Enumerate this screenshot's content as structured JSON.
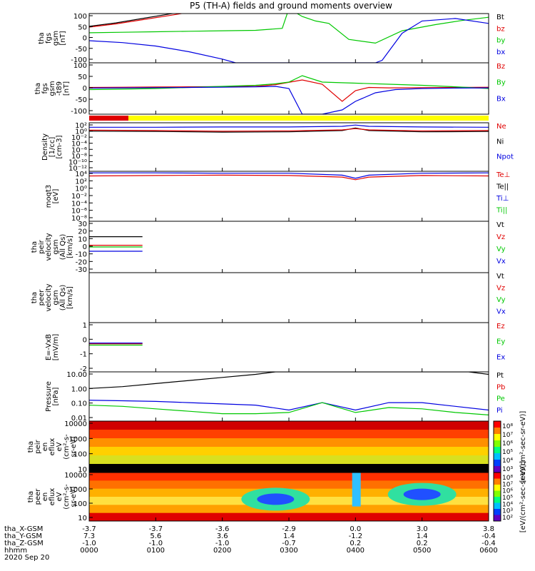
{
  "title": "P5 (TH-A) fields and ground moments overview",
  "colors": {
    "black": "#000000",
    "red": "#e00000",
    "green": "#00c800",
    "blue": "#0000e0",
    "yellow": "#ffff00"
  },
  "chart_data": [
    {
      "type": "line",
      "ylabel_lines": [
        "tha",
        "fgs",
        "gsm",
        "[nT]"
      ],
      "yticks": [
        "100",
        "50",
        "0",
        "-50",
        "-100"
      ],
      "ylim": [
        -100,
        100
      ],
      "legend": [
        {
          "label": "Bt",
          "color": "#000000"
        },
        {
          "label": "bz",
          "color": "#e00000"
        },
        {
          "label": "by",
          "color": "#00c800"
        },
        {
          "label": "bx",
          "color": "#0000e0"
        }
      ],
      "series": [
        {
          "name": "Bt",
          "x": [
            0,
            0.4,
            0.8,
            1.2,
            1.5,
            2.0
          ],
          "y": [
            48,
            62,
            80,
            98,
            110,
            140
          ]
        },
        {
          "name": "bz",
          "x": [
            0,
            0.4,
            0.8,
            1.2,
            1.5,
            2.0
          ],
          "y": [
            45,
            58,
            75,
            92,
            105,
            130
          ]
        },
        {
          "name": "by",
          "x": [
            0,
            0.5,
            1.0,
            1.5,
            2.0,
            2.5,
            2.9,
            3.0,
            3.2,
            3.4,
            3.6,
            3.9,
            4.3,
            4.7,
            5.2,
            5.6,
            6.0
          ],
          "y": [
            22,
            24,
            26,
            28,
            30,
            32,
            40,
            120,
            88,
            70,
            60,
            -5,
            -20,
            30,
            55,
            72,
            85
          ]
        },
        {
          "name": "bx",
          "x": [
            0,
            0.5,
            1.0,
            1.5,
            2.0,
            2.2,
            2.8,
            3.2,
            3.6,
            4.2,
            4.3,
            4.4,
            4.7,
            5.0,
            5.5,
            6.0
          ],
          "y": [
            -10,
            -18,
            -32,
            -55,
            -85,
            -100,
            -100,
            -100,
            -100,
            -100,
            -100,
            -90,
            20,
            70,
            80,
            60
          ]
        }
      ]
    },
    {
      "type": "line",
      "ylabel_lines": [
        "tha",
        "fgs",
        "gsm",
        "-t89",
        "[nT]"
      ],
      "yticks": [
        "100",
        "50",
        "0",
        "-50",
        "-100"
      ],
      "ylim": [
        -120,
        120
      ],
      "legend": [
        {
          "label": "Bz",
          "color": "#e00000"
        },
        {
          "label": "By",
          "color": "#00c800"
        },
        {
          "label": "Bx",
          "color": "#0000e0"
        }
      ],
      "series": [
        {
          "name": "Bz",
          "x": [
            0,
            0.5,
            1.0,
            1.5,
            2.0,
            2.5,
            2.8,
            3.2,
            3.5,
            3.8,
            4.0,
            4.2,
            4.5,
            5.0,
            5.5,
            6.0
          ],
          "y": [
            5,
            6,
            7,
            8,
            9,
            10,
            18,
            40,
            20,
            -60,
            -10,
            5,
            3,
            4,
            5,
            6
          ]
        },
        {
          "name": "By",
          "x": [
            0,
            0.5,
            1.0,
            1.5,
            2.0,
            2.5,
            2.8,
            3.0,
            3.2,
            3.5,
            4.0,
            4.5,
            5.0,
            5.5,
            6.0
          ],
          "y": [
            -5,
            -3,
            0,
            5,
            10,
            15,
            22,
            30,
            60,
            30,
            25,
            20,
            15,
            8,
            0
          ]
        },
        {
          "name": "Bx",
          "x": [
            0,
            0.5,
            1.0,
            1.5,
            2.0,
            2.5,
            2.8,
            3.0,
            3.2,
            3.5,
            3.8,
            4.0,
            4.3,
            4.6,
            5.0,
            5.5,
            6.0
          ],
          "y": [
            2,
            3,
            4,
            5,
            6,
            8,
            10,
            0,
            -120,
            -120,
            -100,
            -60,
            -20,
            -5,
            0,
            2,
            3
          ]
        }
      ]
    },
    {
      "type": "line",
      "ylabel_lines": [
        "Density",
        "[1/cc]",
        "[cm-3]"
      ],
      "yticks": [
        "10^2",
        "10^0",
        "10^-2",
        "10^-4",
        "10^-6",
        "10^-8",
        "10^-10",
        "10^-12"
      ],
      "ylim_log10": [
        -13,
        2
      ],
      "legend": [
        {
          "label": "Ne",
          "color": "#e00000"
        },
        {
          "label": "Ni",
          "color": "#000000"
        },
        {
          "label": "Npot",
          "color": "#0000e0"
        }
      ],
      "series": [
        {
          "name": "Npot",
          "x": [
            0,
            1,
            2,
            3,
            3.8,
            4.0,
            4.2,
            5,
            6
          ],
          "y": [
            0.6,
            0.6,
            0.7,
            0.7,
            0.9,
            1.3,
            0.9,
            0.7,
            0.6
          ]
        },
        {
          "name": "Ni",
          "x": [
            0,
            1,
            2,
            3,
            3.8,
            4.0,
            4.2,
            5,
            6
          ],
          "y": [
            -0.6,
            -0.7,
            -0.9,
            -0.8,
            -0.4,
            0.4,
            -0.4,
            -0.8,
            -0.7
          ]
        },
        {
          "name": "Ne",
          "x": [
            0,
            1,
            2,
            3,
            3.8,
            4.0,
            4.2,
            5,
            6
          ],
          "y": [
            -0.3,
            -0.4,
            -0.6,
            -0.5,
            -0.2,
            0.2,
            -0.2,
            -0.5,
            -0.4
          ]
        }
      ]
    },
    {
      "type": "line",
      "ylabel_lines": [
        "moqt3",
        "[eV]"
      ],
      "yticks": [
        "10^4",
        "10^2",
        "10^0",
        "10^-2",
        "10^-4",
        "10^-6",
        "10^-8"
      ],
      "ylim_log10": [
        -9,
        4
      ],
      "legend": [
        {
          "label": "Te⊥",
          "color": "#e00000"
        },
        {
          "label": "Te||",
          "color": "#000000"
        },
        {
          "label": "Ti⊥",
          "color": "#0000e0"
        },
        {
          "label": "Ti||",
          "color": "#00c800"
        }
      ],
      "series": [
        {
          "name": "Ti⊥",
          "x": [
            0,
            1,
            2,
            3,
            3.8,
            4.0,
            4.2,
            5,
            6
          ],
          "y": [
            3.6,
            3.6,
            3.5,
            3.5,
            3.0,
            2.2,
            3.0,
            3.5,
            3.6
          ]
        },
        {
          "name": "Te⊥",
          "x": [
            0,
            1,
            2,
            3,
            3.8,
            4.0,
            4.2,
            5,
            6
          ],
          "y": [
            2.8,
            2.9,
            3.0,
            2.9,
            2.5,
            1.8,
            2.5,
            2.9,
            2.8
          ]
        }
      ]
    },
    {
      "type": "line",
      "ylabel_lines": [
        "tha",
        "peir",
        "velocity",
        "gsm",
        "(All Qs)",
        "[km/s]"
      ],
      "yticks": [
        "30",
        "20",
        "10",
        "0",
        "-10",
        "-20",
        "-30"
      ],
      "ylim": [
        -30,
        30
      ],
      "legend": [
        {
          "label": "Vt",
          "color": "#000000"
        },
        {
          "label": "Vz",
          "color": "#e00000"
        },
        {
          "label": "Vy",
          "color": "#00c800"
        },
        {
          "label": "Vx",
          "color": "#0000e0"
        }
      ],
      "series": [
        {
          "name": "Vt",
          "x": [
            0,
            0.8
          ],
          "y": [
            12,
            12
          ]
        },
        {
          "name": "Vz",
          "x": [
            0,
            0.8
          ],
          "y": [
            2,
            2
          ]
        },
        {
          "name": "Vy",
          "x": [
            0,
            0.8
          ],
          "y": [
            0,
            0
          ]
        },
        {
          "name": "Vx",
          "x": [
            0,
            0.8
          ],
          "y": [
            -5,
            -5
          ]
        }
      ]
    },
    {
      "type": "line",
      "ylabel_lines": [
        "tha",
        "peer",
        "velocity",
        "gsm",
        "(All Qs)",
        "[km/s]"
      ],
      "yticks": [],
      "legend": [
        {
          "label": "Vt",
          "color": "#000000"
        },
        {
          "label": "Vz",
          "color": "#e00000"
        },
        {
          "label": "Vy",
          "color": "#00c800"
        },
        {
          "label": "Vx",
          "color": "#0000e0"
        }
      ],
      "series": []
    },
    {
      "type": "line",
      "ylabel_lines": [
        "E=-VxB",
        "[mV/m]"
      ],
      "yticks": [
        "1",
        "0",
        "-1",
        "-2"
      ],
      "ylim": [
        -2,
        1.5
      ],
      "legend": [
        {
          "label": "Ez",
          "color": "#e00000"
        },
        {
          "label": "Ey",
          "color": "#00c800"
        },
        {
          "label": "Ex",
          "color": "#0000e0"
        }
      ],
      "series": [
        {
          "name": "Ez",
          "x": [
            0,
            0.8
          ],
          "y": [
            0,
            0
          ]
        },
        {
          "name": "Ey",
          "x": [
            0,
            0.8
          ],
          "y": [
            -0.1,
            -0.1
          ]
        },
        {
          "name": "Ex",
          "x": [
            0,
            0.8
          ],
          "y": [
            0.05,
            0.05
          ]
        }
      ]
    },
    {
      "type": "line",
      "ylabel_lines": [
        "Pressure",
        "[nPa]"
      ],
      "yticks": [
        "10.00",
        "1.00",
        "0.10",
        "0.01"
      ],
      "ylim_log10": [
        -2.5,
        1.5
      ],
      "legend": [
        {
          "label": "Pt",
          "color": "#000000"
        },
        {
          "label": "Pb",
          "color": "#e00000"
        },
        {
          "label": "Pe",
          "color": "#00c800"
        },
        {
          "label": "Pi",
          "color": "#0000e0"
        }
      ],
      "series": [
        {
          "name": "Pt",
          "x": [
            0,
            0.5,
            1.0,
            1.5,
            2.0,
            2.5,
            2.8,
            5.7,
            6.0
          ],
          "y": [
            0.15,
            0.3,
            0.55,
            0.8,
            1.05,
            1.3,
            1.5,
            1.5,
            1.3
          ]
        },
        {
          "name": "Pi",
          "x": [
            0,
            0.5,
            1.0,
            1.5,
            2.0,
            2.5,
            3.0,
            3.5,
            4.0,
            4.5,
            5.0,
            5.5,
            6.0
          ],
          "y": [
            -0.8,
            -0.85,
            -0.9,
            -1.0,
            -1.1,
            -1.2,
            -1.6,
            -1.0,
            -1.6,
            -1.0,
            -1.0,
            -1.3,
            -1.6
          ]
        },
        {
          "name": "Pe",
          "x": [
            0,
            0.5,
            1.0,
            1.5,
            2.0,
            2.5,
            3.0,
            3.5,
            4.0,
            4.5,
            5.0,
            5.5,
            6.0
          ],
          "y": [
            -1.2,
            -1.3,
            -1.5,
            -1.7,
            -1.9,
            -1.9,
            -1.8,
            -1.0,
            -1.8,
            -1.4,
            -1.5,
            -1.8,
            -2.0
          ]
        }
      ]
    },
    {
      "type": "heatmap",
      "ylabel_lines": [
        "tha",
        "peir",
        "en",
        "eflux",
        "eV",
        "(cm^2-s-",
        "sr-eV)"
      ],
      "yticks": [
        "10000",
        "1000",
        "100",
        "10"
      ],
      "colorbar_ticks": [
        "10^8",
        "10^7",
        "10^6",
        "10^5",
        "10^4",
        "10^3"
      ],
      "colorbar_label": "[eV/(cm^2-sec-sr-eV)]"
    },
    {
      "type": "heatmap",
      "ylabel_lines": [
        "tha",
        "peer",
        "en",
        "eflux",
        "eV",
        "(cm^2-s-",
        "sr-eV)"
      ],
      "yticks": [
        "10000",
        "1000",
        "100",
        "10"
      ],
      "colorbar_ticks": [
        "10^8",
        "10^7",
        "10^6",
        "10^5",
        "10^4",
        "10^3",
        "10^2"
      ],
      "colorbar_label": "[eV/(cm^2-sec-sr-eV)]"
    }
  ],
  "xaxis": {
    "row_labels": [
      "tha_X-GSM",
      "tha_Y-GSM",
      "tha_Z-GSM",
      "hhmm",
      "2020 Sep 20"
    ],
    "columns": [
      {
        "x": "-3.7",
        "y": "7.3",
        "z": "-1.0",
        "t": "0000"
      },
      {
        "x": "-3.7",
        "y": "5.6",
        "z": "-1.0",
        "t": "0100"
      },
      {
        "x": "-3.6",
        "y": "3.6",
        "z": "-1.0",
        "t": "0200"
      },
      {
        "x": "-2.9",
        "y": "1.4",
        "z": "-0.7",
        "t": "0300"
      },
      {
        "x": "0.0",
        "y": "-1.2",
        "z": "0.2",
        "t": "0400"
      },
      {
        "x": "3.0",
        "y": "1.4",
        "z": "0.2",
        "t": "0500"
      },
      {
        "x": "3.8",
        "y": "-0.4",
        "z": "-0.4",
        "t": "0600"
      }
    ]
  }
}
